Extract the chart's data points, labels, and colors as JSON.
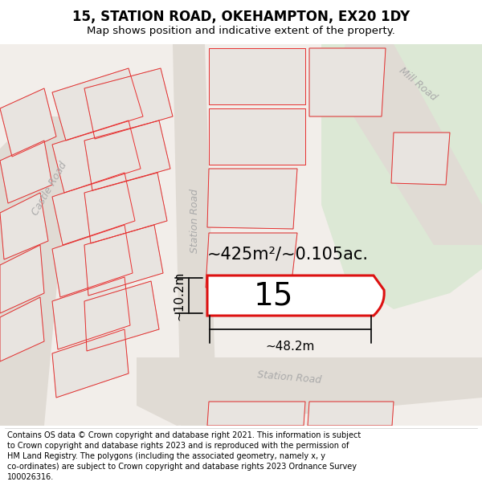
{
  "title": "15, STATION ROAD, OKEHAMPTON, EX20 1DY",
  "subtitle": "Map shows position and indicative extent of the property.",
  "footer": "Contains OS data © Crown copyright and database right 2021. This information is subject\nto Crown copyright and database rights 2023 and is reproduced with the permission of\nHM Land Registry. The polygons (including the associated geometry, namely x, y\nco-ordinates) are subject to Crown copyright and database rights 2023 Ordnance Survey\n100026316.",
  "area_label": "~425m²/~0.105ac.",
  "width_label": "~48.2m",
  "height_label": "~10.2m",
  "number_label": "15",
  "map_bg": "#f2eeea",
  "white_bg": "#ffffff",
  "green_color": "#dce8d5",
  "road_gray": "#e0dbd4",
  "building_fill": "#e8e4e0",
  "building_edge": "#c8c4be",
  "red_color": "#e83030",
  "highlight_fill": "#ffffff",
  "highlight_stroke": "#dd1111",
  "dim_color": "#111111",
  "road_label_color": "#aaaaaa",
  "title_fontsize": 12,
  "subtitle_fontsize": 9.5,
  "footer_fontsize": 7.0,
  "area_fontsize": 15,
  "num_fontsize": 28,
  "dim_fontsize": 11,
  "road_label_fontsize": 9
}
